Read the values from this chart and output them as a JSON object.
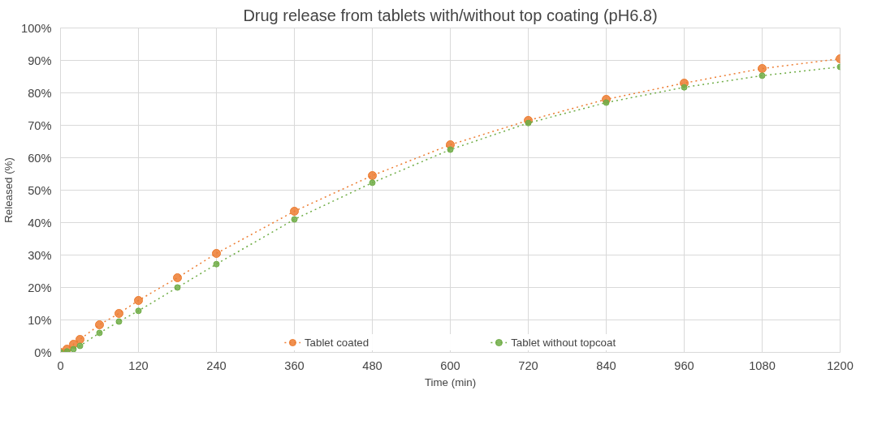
{
  "chart_data": {
    "type": "line",
    "title": "Drug release from tablets with/without top coating (pH6.8)",
    "xlabel": "Time (min)",
    "ylabel": "Released (%)",
    "x": [
      0,
      10,
      20,
      30,
      60,
      90,
      120,
      180,
      240,
      360,
      480,
      600,
      720,
      840,
      960,
      1080,
      1200
    ],
    "series": [
      {
        "name": "Tablet coated",
        "color": "#ed7d31",
        "values": [
          0,
          1,
          2.5,
          4,
          8.5,
          12,
          16,
          23,
          30.5,
          43.5,
          54.5,
          64,
          71.5,
          78,
          83,
          87.5,
          90.5
        ]
      },
      {
        "name": "Tablet without topcoat",
        "color": "#70ad47",
        "values": [
          0,
          0.3,
          1,
          2,
          6,
          9.5,
          12.8,
          20,
          27.2,
          41,
          52.3,
          62.5,
          70.7,
          77,
          81.7,
          85.3,
          88
        ]
      }
    ],
    "xlim": [
      0,
      1200
    ],
    "xticks": [
      0,
      120,
      240,
      360,
      480,
      600,
      720,
      840,
      960,
      1080,
      1200
    ],
    "ylim": [
      0,
      100
    ],
    "yticks": [
      {
        "value": 0,
        "label": "0%"
      },
      {
        "value": 10,
        "label": "10%"
      },
      {
        "value": 20,
        "label": "20%"
      },
      {
        "value": 30,
        "label": "30%"
      },
      {
        "value": 40,
        "label": "40%"
      },
      {
        "value": 50,
        "label": "50%"
      },
      {
        "value": 60,
        "label": "60%"
      },
      {
        "value": 70,
        "label": "70%"
      },
      {
        "value": 80,
        "label": "80%"
      },
      {
        "value": 90,
        "label": "90%"
      },
      {
        "value": 100,
        "label": "100%"
      }
    ],
    "grid": true,
    "legend": "bottom",
    "marker": "circle",
    "line_style": "dotted"
  }
}
